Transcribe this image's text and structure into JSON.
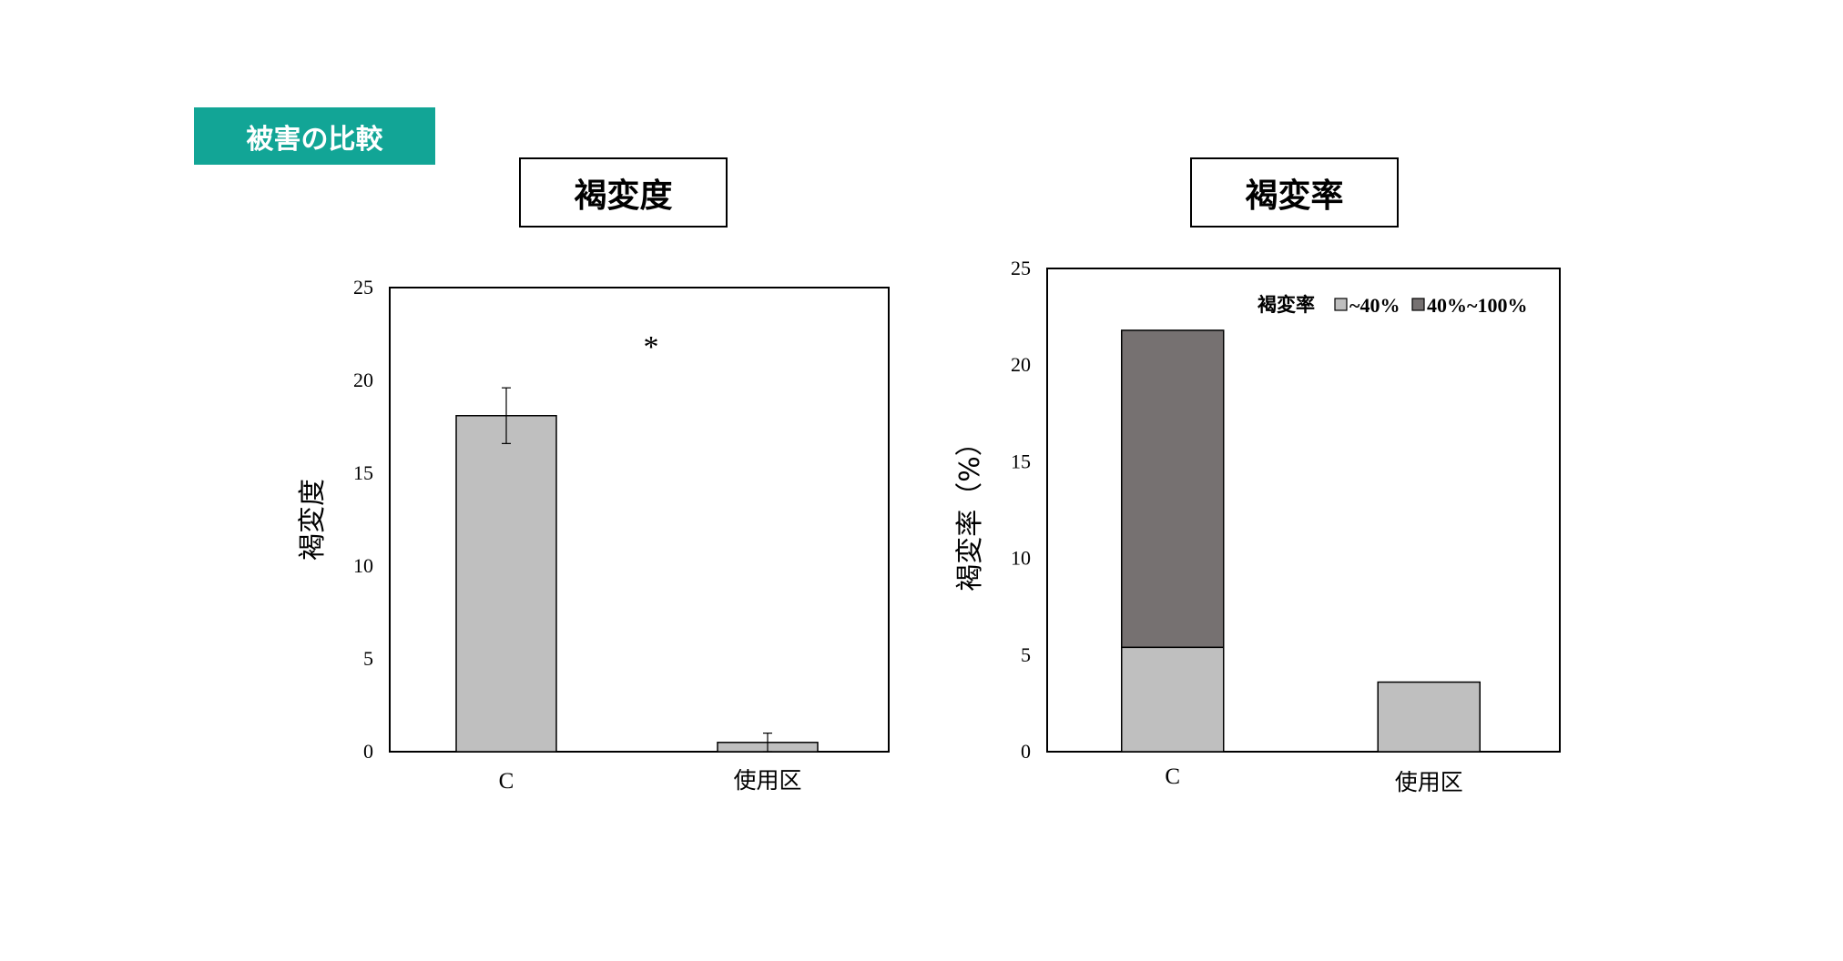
{
  "section_tag": "被害の比較",
  "colors": {
    "tag_background": "#12a596",
    "light_bar": "#bfbfbf",
    "dark_bar": "#767171"
  },
  "chart_data": [
    {
      "type": "bar",
      "title": "褐変度",
      "categories": [
        "C",
        "使用区"
      ],
      "series": [
        {
          "values": [
            18.1,
            0.5
          ],
          "error": [
            1.5,
            0.5
          ]
        }
      ],
      "annotation": "*",
      "xlabel": "",
      "ylabel": "褐変度",
      "ylim": [
        0,
        25
      ],
      "yticks": [
        0,
        5,
        10,
        15,
        20,
        25
      ],
      "grid": false,
      "legend": null
    },
    {
      "type": "bar",
      "stacked": true,
      "title": "褐変率",
      "categories": [
        "C",
        "使用区"
      ],
      "series": [
        {
          "name": "~40%",
          "values": [
            5.4,
            3.6
          ]
        },
        {
          "name": "40%~100%",
          "values": [
            16.4,
            0
          ]
        }
      ],
      "xlabel": "",
      "ylabel": "褐変率（%）",
      "ylim": [
        0,
        25
      ],
      "yticks": [
        0,
        5,
        10,
        15,
        20,
        25
      ],
      "grid": false,
      "legend": {
        "title": "褐変率",
        "placement": "top-right"
      }
    }
  ]
}
